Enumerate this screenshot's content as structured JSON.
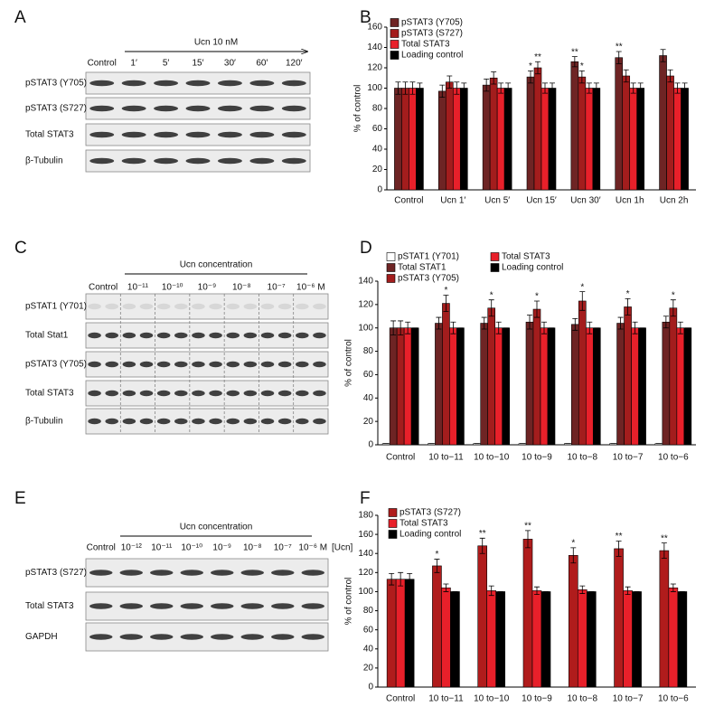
{
  "blots": [
    {
      "letter": "A",
      "header": "Ucn 10 nM",
      "lanes": [
        "Control",
        "1′",
        "5′",
        "15′",
        "30′",
        "60′",
        "120′"
      ],
      "rows": [
        "pSTAT3 (Y705)",
        "pSTAT3 (S727)",
        "Total STAT3",
        "β-Tubulin"
      ]
    },
    {
      "letter": "C",
      "header": "Ucn concentration",
      "lanes": [
        "Control",
        "10⁻¹¹",
        "10⁻¹⁰",
        "10⁻⁹",
        "10⁻⁸",
        "10⁻⁷",
        "10⁻⁶ M"
      ],
      "rows": [
        "pSTAT1 (Y701)",
        "Total Stat1",
        "pSTAT3 (Y705)",
        "Total STAT3",
        "β-Tubulin"
      ]
    },
    {
      "letter": "E",
      "header": "Ucn concentration",
      "lanes": [
        "Control",
        "10⁻¹²",
        "10⁻¹¹",
        "10⁻¹⁰",
        "10⁻⁹",
        "10⁻⁸",
        "10⁻⁷",
        "10⁻⁶ M"
      ],
      "unit": "[Ucn]",
      "rows": [
        "pSTAT3 (S727)",
        "Total STAT3",
        "GAPDH"
      ]
    }
  ],
  "chart_data": [
    {
      "type": "bar",
      "letter": "B",
      "ylabel": "% of control",
      "categories": [
        "Control",
        "Ucn 1′",
        "Ucn 5′",
        "Ucn 15′",
        "Ucn 30′",
        "Ucn 1h",
        "Ucn 2h"
      ],
      "series": [
        {
          "name": "pSTAT3 (Y705)",
          "color": "#6e2424",
          "values": [
            100,
            97,
            103,
            111,
            126,
            130,
            132
          ],
          "errors": [
            6,
            6,
            6,
            6,
            5,
            6,
            6
          ],
          "annotations": [
            null,
            null,
            null,
            "*",
            "**",
            "**",
            null
          ]
        },
        {
          "name": "pSTAT3 (S727)",
          "color": "#a31d1d",
          "values": [
            100,
            106,
            110,
            120,
            111,
            112,
            112
          ],
          "errors": [
            6,
            6,
            6,
            6,
            6,
            6,
            6
          ],
          "annotations": [
            null,
            null,
            null,
            "**",
            "*",
            null,
            null
          ]
        },
        {
          "name": "Total STAT3",
          "color": "#e8202a",
          "values": [
            100,
            100,
            100,
            100,
            100,
            100,
            100
          ],
          "errors": [
            6,
            6,
            5,
            5,
            5,
            5,
            5
          ],
          "annotations": [
            null,
            null,
            null,
            null,
            null,
            null,
            null
          ]
        },
        {
          "name": "Loading control",
          "color": "#000000",
          "values": [
            100,
            100,
            100,
            100,
            100,
            100,
            100
          ],
          "errors": [
            5,
            5,
            5,
            5,
            5,
            5,
            5
          ],
          "annotations": [
            null,
            null,
            null,
            null,
            null,
            null,
            null
          ]
        }
      ],
      "ylim": [
        0,
        160
      ],
      "yticks": [
        0,
        20,
        40,
        60,
        80,
        100,
        120,
        140,
        160
      ]
    },
    {
      "type": "bar",
      "letter": "D",
      "ylabel": "% of control",
      "categories": [
        "Control",
        "10 to−11",
        "10 to−10",
        "10 to−9",
        "10 to−8",
        "10 to−7",
        "10 to−6"
      ],
      "series": [
        {
          "name": "pSTAT1 (Y701)",
          "color": "#ffffff",
          "values": [
            1,
            1,
            1,
            1,
            1,
            1,
            1
          ],
          "errors": [
            0,
            0,
            0,
            0,
            0,
            0,
            0
          ],
          "annotations": [
            null,
            null,
            null,
            null,
            null,
            null,
            null
          ]
        },
        {
          "name": "Total STAT1",
          "color": "#6e2424",
          "values": [
            100,
            104,
            104,
            105,
            103,
            104,
            105
          ],
          "errors": [
            6,
            5,
            5,
            6,
            5,
            5,
            5
          ],
          "annotations": [
            null,
            null,
            null,
            null,
            null,
            null,
            null
          ]
        },
        {
          "name": "pSTAT3 (Y705)",
          "color": "#a31d1d",
          "values": [
            100,
            121,
            117,
            116,
            123,
            118,
            117
          ],
          "errors": [
            6,
            7,
            7,
            7,
            8,
            7,
            7
          ],
          "annotations": [
            null,
            "*",
            "*",
            "*",
            "*",
            "*",
            "*"
          ]
        },
        {
          "name": "Total STAT3",
          "color": "#e8202a",
          "values": [
            100,
            100,
            100,
            100,
            100,
            100,
            100
          ],
          "errors": [
            5,
            5,
            5,
            5,
            5,
            5,
            5
          ],
          "annotations": [
            null,
            null,
            null,
            null,
            null,
            null,
            null
          ]
        },
        {
          "name": "Loading control",
          "color": "#000000",
          "values": [
            100,
            100,
            100,
            100,
            100,
            100,
            100
          ],
          "errors": [
            0,
            0,
            0,
            0,
            0,
            0,
            0
          ],
          "annotations": [
            null,
            null,
            null,
            null,
            null,
            null,
            null
          ]
        }
      ],
      "ylim": [
        0,
        140
      ],
      "yticks": [
        0,
        20,
        40,
        60,
        80,
        100,
        120,
        140
      ]
    },
    {
      "type": "bar",
      "letter": "F",
      "ylabel": "% of control",
      "categories": [
        "Control",
        "10 to−11",
        "10 to−10",
        "10 to−9",
        "10 to−8",
        "10 to−7",
        "10 to−6"
      ],
      "series": [
        {
          "name": "pSTAT3 (S727)",
          "color": "#b01c1c",
          "values": [
            113,
            127,
            148,
            155,
            138,
            145,
            143
          ],
          "errors": [
            6,
            7,
            8,
            9,
            8,
            8,
            8
          ],
          "annotations": [
            null,
            "*",
            "**",
            "**",
            "*",
            "**",
            "**"
          ]
        },
        {
          "name": "Total STAT3",
          "color": "#e8202a",
          "values": [
            113,
            104,
            101,
            101,
            102,
            101,
            104
          ],
          "errors": [
            7,
            4,
            5,
            4,
            4,
            4,
            4
          ],
          "annotations": [
            null,
            null,
            null,
            null,
            null,
            null,
            null
          ]
        },
        {
          "name": "Loading control",
          "color": "#000000",
          "values": [
            113,
            100,
            100,
            100,
            100,
            100,
            100
          ],
          "errors": [
            6,
            0,
            0,
            0,
            0,
            0,
            0
          ],
          "annotations": [
            null,
            null,
            null,
            null,
            null,
            null,
            null
          ]
        }
      ],
      "ylim": [
        0,
        180
      ],
      "yticks": [
        0,
        20,
        40,
        60,
        80,
        100,
        120,
        140,
        160,
        180
      ]
    }
  ]
}
